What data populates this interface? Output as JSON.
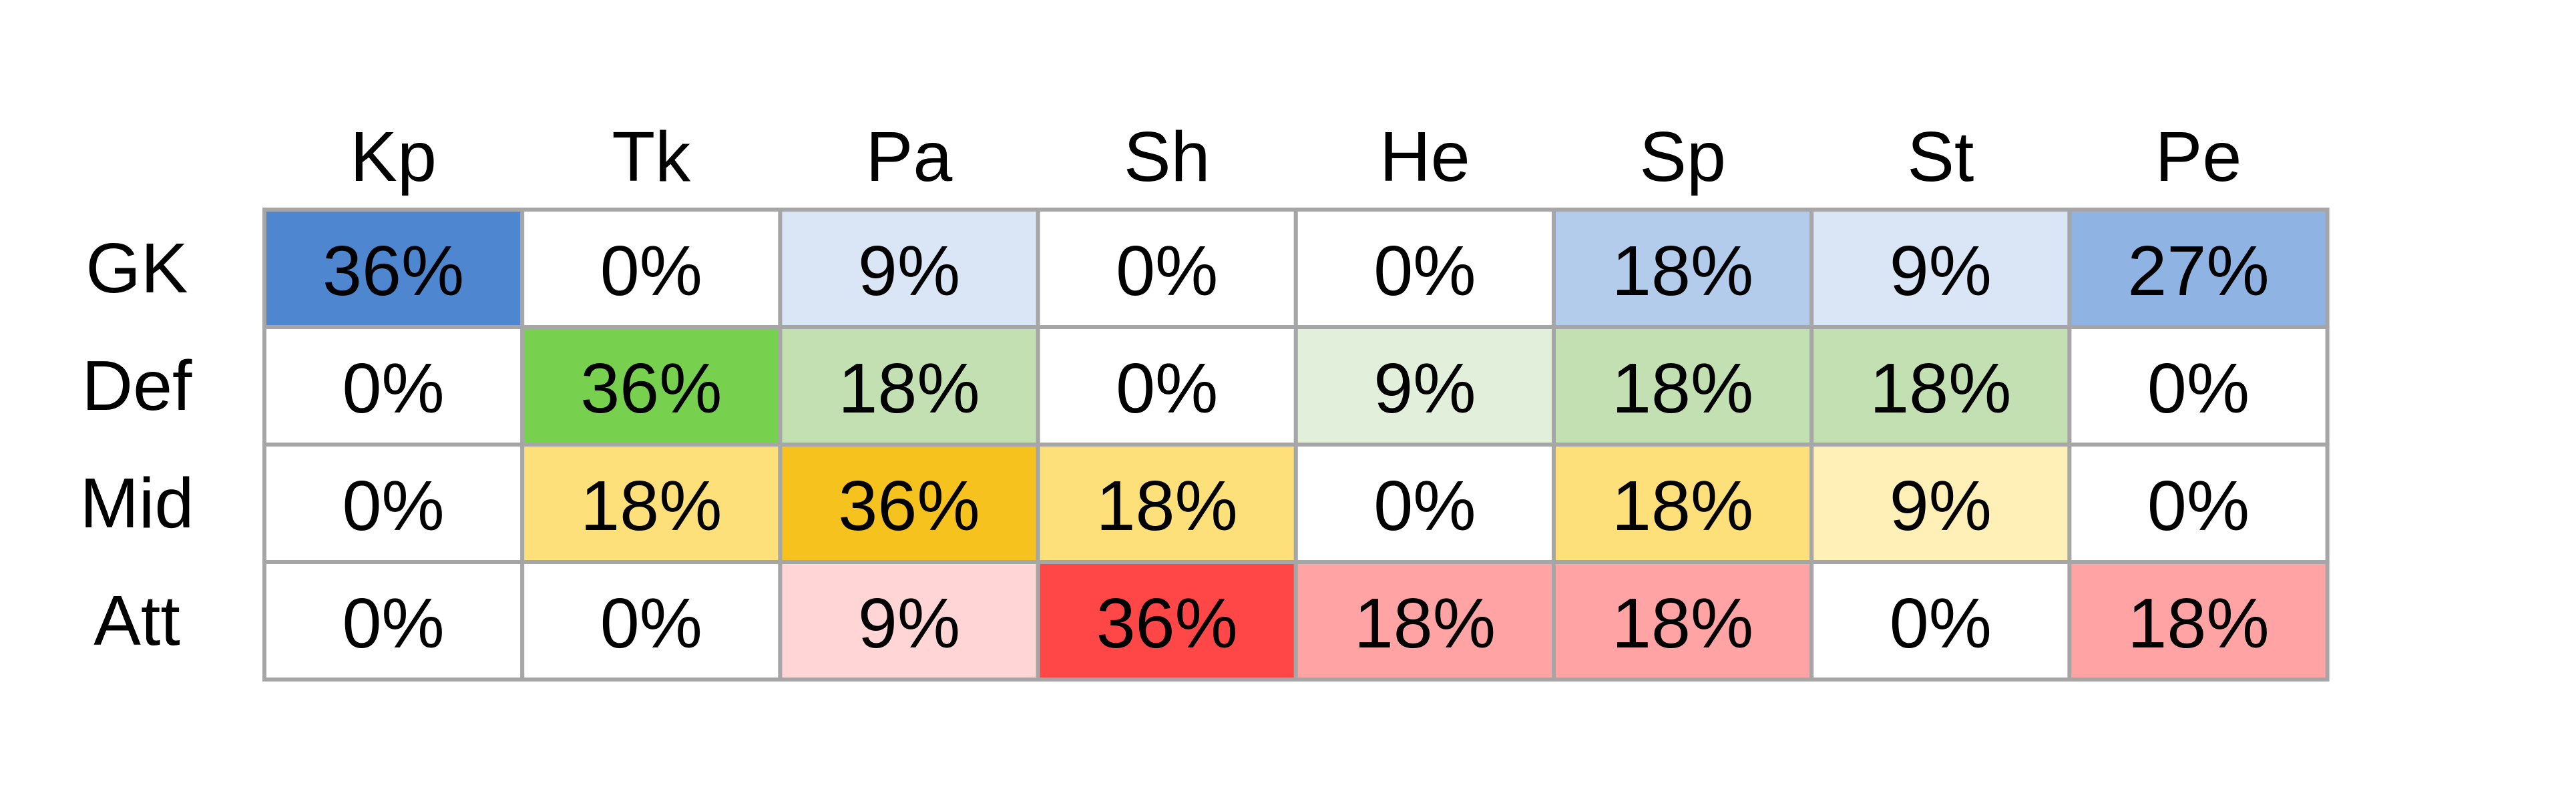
{
  "table": {
    "columns": [
      "Kp",
      "Tk",
      "Pa",
      "Sh",
      "He",
      "Sp",
      "St",
      "Pe"
    ],
    "rows": [
      {
        "label": "GK",
        "cells": [
          "36%",
          "0%",
          "9%",
          "0%",
          "0%",
          "18%",
          "9%",
          "27%"
        ],
        "colors": [
          "#4f86d0",
          "#ffffff",
          "#dae6f6",
          "#ffffff",
          "#ffffff",
          "#b4cceb",
          "#dae6f6",
          "#8fb3e2"
        ]
      },
      {
        "label": "Def",
        "cells": [
          "0%",
          "36%",
          "18%",
          "0%",
          "9%",
          "18%",
          "18%",
          "0%"
        ],
        "colors": [
          "#ffffff",
          "#77d04e",
          "#c3e0b2",
          "#ffffff",
          "#e2efda",
          "#c3e0b2",
          "#c3e0b2",
          "#ffffff"
        ]
      },
      {
        "label": "Mid",
        "cells": [
          "0%",
          "18%",
          "36%",
          "18%",
          "0%",
          "18%",
          "9%",
          "0%"
        ],
        "colors": [
          "#ffffff",
          "#fde07a",
          "#f6c21e",
          "#fde07a",
          "#ffffff",
          "#fde07a",
          "#fff0b8",
          "#ffffff"
        ]
      },
      {
        "label": "Att",
        "cells": [
          "0%",
          "0%",
          "9%",
          "36%",
          "18%",
          "18%",
          "0%",
          "18%"
        ],
        "colors": [
          "#ffffff",
          "#ffffff",
          "#ffd5d6",
          "#ff4747",
          "#ffa3a5",
          "#ffa3a5",
          "#ffffff",
          "#ffa3a5"
        ]
      }
    ]
  }
}
